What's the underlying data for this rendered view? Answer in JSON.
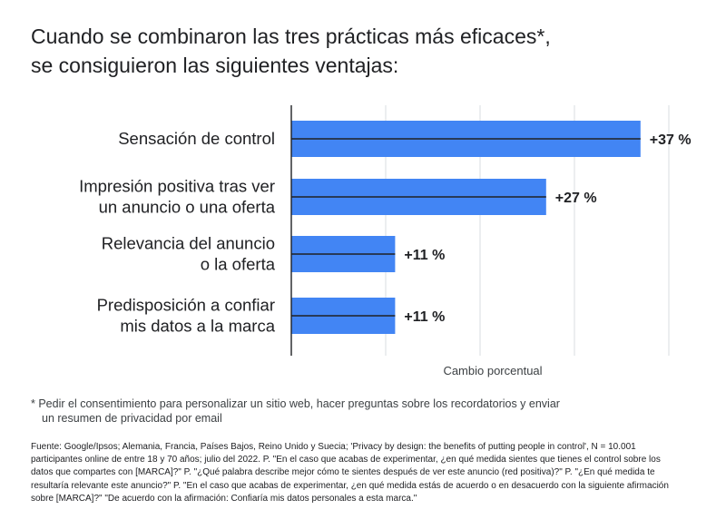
{
  "title": {
    "line1": "Cuando se combinaron las tres prácticas más eficaces*,",
    "line2": "se consiguieron las siguientes ventajas:"
  },
  "chart_data": {
    "type": "bar",
    "orientation": "horizontal",
    "categories": [
      [
        "Sensación de control"
      ],
      [
        "Impresión positiva tras ver",
        "un anuncio o una oferta"
      ],
      [
        "Relevancia del anuncio",
        "o la oferta"
      ],
      [
        "Predisposición a confiar",
        "mis datos a la marca"
      ]
    ],
    "values": [
      37,
      27,
      11,
      11
    ],
    "data_labels": [
      "+37 %",
      "+27 %",
      "+11 %",
      "+11 %"
    ],
    "xlabel": "Cambio porcentual",
    "xlim": [
      0,
      40
    ],
    "grid": true,
    "bar_color": "#4285f4"
  },
  "footnote": {
    "line1": "* Pedir el consentimiento para personalizar un sitio web, hacer preguntas sobre los recordatorios y enviar",
    "line2": "un resumen de privacidad por email"
  },
  "source": {
    "line1": "Fuente: Google/Ipsos; Alemania, Francia, Países Bajos, Reino Unido y Suecia; 'Privacy by design: the benefits of putting people in control', N = 10.001",
    "line2": "participantes online de entre 18 y 70 años; julio del 2022. P. \"En el caso que acabas de experimentar, ¿en qué medida sientes que tienes el control sobre los",
    "line3": "datos que compartes con [MARCA]?\" P. \"¿Qué palabra describe mejor cómo te sientes después de ver este anuncio (red positiva)?\" P. \"¿En qué medida te",
    "line4": "resultaría relevante este anuncio?\" P. \"En el caso que acabas de experimentar, ¿en qué medida estás de acuerdo o en desacuerdo con la siguiente afirmación",
    "line5": "sobre [MARCA]?\" \"De acuerdo con la afirmación: Confiaría mis datos personales a esta marca.\""
  }
}
